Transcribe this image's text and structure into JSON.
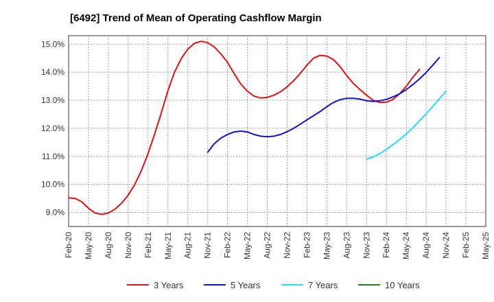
{
  "chart_data": {
    "type": "line",
    "title": "[6492]  Trend of Mean of Operating Cashflow Margin",
    "xlabel": "",
    "ylabel": "",
    "ylim": [
      8.5,
      15.3
    ],
    "yticks": [
      "9.0%",
      "10.0%",
      "11.0%",
      "12.0%",
      "13.0%",
      "14.0%",
      "15.0%"
    ],
    "ytick_values": [
      9,
      10,
      11,
      12,
      13,
      14,
      15
    ],
    "x_labels": [
      "Feb-20",
      "May-20",
      "Aug-20",
      "Nov-20",
      "Feb-21",
      "May-21",
      "Aug-21",
      "Nov-21",
      "Feb-22",
      "May-22",
      "Aug-22",
      "Nov-22",
      "Feb-23",
      "May-23",
      "Aug-23",
      "Nov-23",
      "Feb-24",
      "May-24",
      "Aug-24",
      "Nov-24",
      "Feb-25",
      "May-25"
    ],
    "grid": true,
    "legend_position": "bottom",
    "series": [
      {
        "name": "3 Years",
        "color": "#dd1111",
        "start_index": 0,
        "values": [
          9.52,
          9.5,
          9.38,
          9.15,
          8.98,
          8.93,
          8.98,
          9.12,
          9.33,
          9.62,
          10.0,
          10.5,
          11.1,
          11.8,
          12.55,
          13.35,
          14.0,
          14.48,
          14.82,
          15.03,
          15.1,
          15.05,
          14.9,
          14.65,
          14.35,
          13.95,
          13.58,
          13.32,
          13.15,
          13.08,
          13.1,
          13.18,
          13.3,
          13.48,
          13.7,
          13.96,
          14.25,
          14.5,
          14.6,
          14.57,
          14.45,
          14.2,
          13.88,
          13.6,
          13.38,
          13.18,
          13.0,
          12.92,
          12.93,
          13.03,
          13.23,
          13.5,
          13.82,
          14.1
        ]
      },
      {
        "name": "5 Years",
        "color": "#1111cc",
        "start_index": 21,
        "values": [
          11.15,
          11.45,
          11.65,
          11.78,
          11.87,
          11.9,
          11.87,
          11.78,
          11.72,
          11.7,
          11.72,
          11.78,
          11.88,
          12.0,
          12.15,
          12.3,
          12.45,
          12.6,
          12.77,
          12.92,
          13.02,
          13.07,
          13.07,
          13.04,
          12.98,
          12.96,
          12.98,
          13.03,
          13.12,
          13.23,
          13.38,
          13.56,
          13.76,
          13.99,
          14.25,
          14.52
        ]
      },
      {
        "name": "7 Years",
        "color": "#22ddee",
        "start_index": 45,
        "values": [
          10.9,
          10.98,
          11.1,
          11.25,
          11.42,
          11.6,
          11.8,
          12.02,
          12.27,
          12.52,
          12.78,
          13.05,
          13.33
        ]
      },
      {
        "name": "10 Years",
        "color": "#118811",
        "start_index": 0,
        "values": []
      }
    ]
  }
}
